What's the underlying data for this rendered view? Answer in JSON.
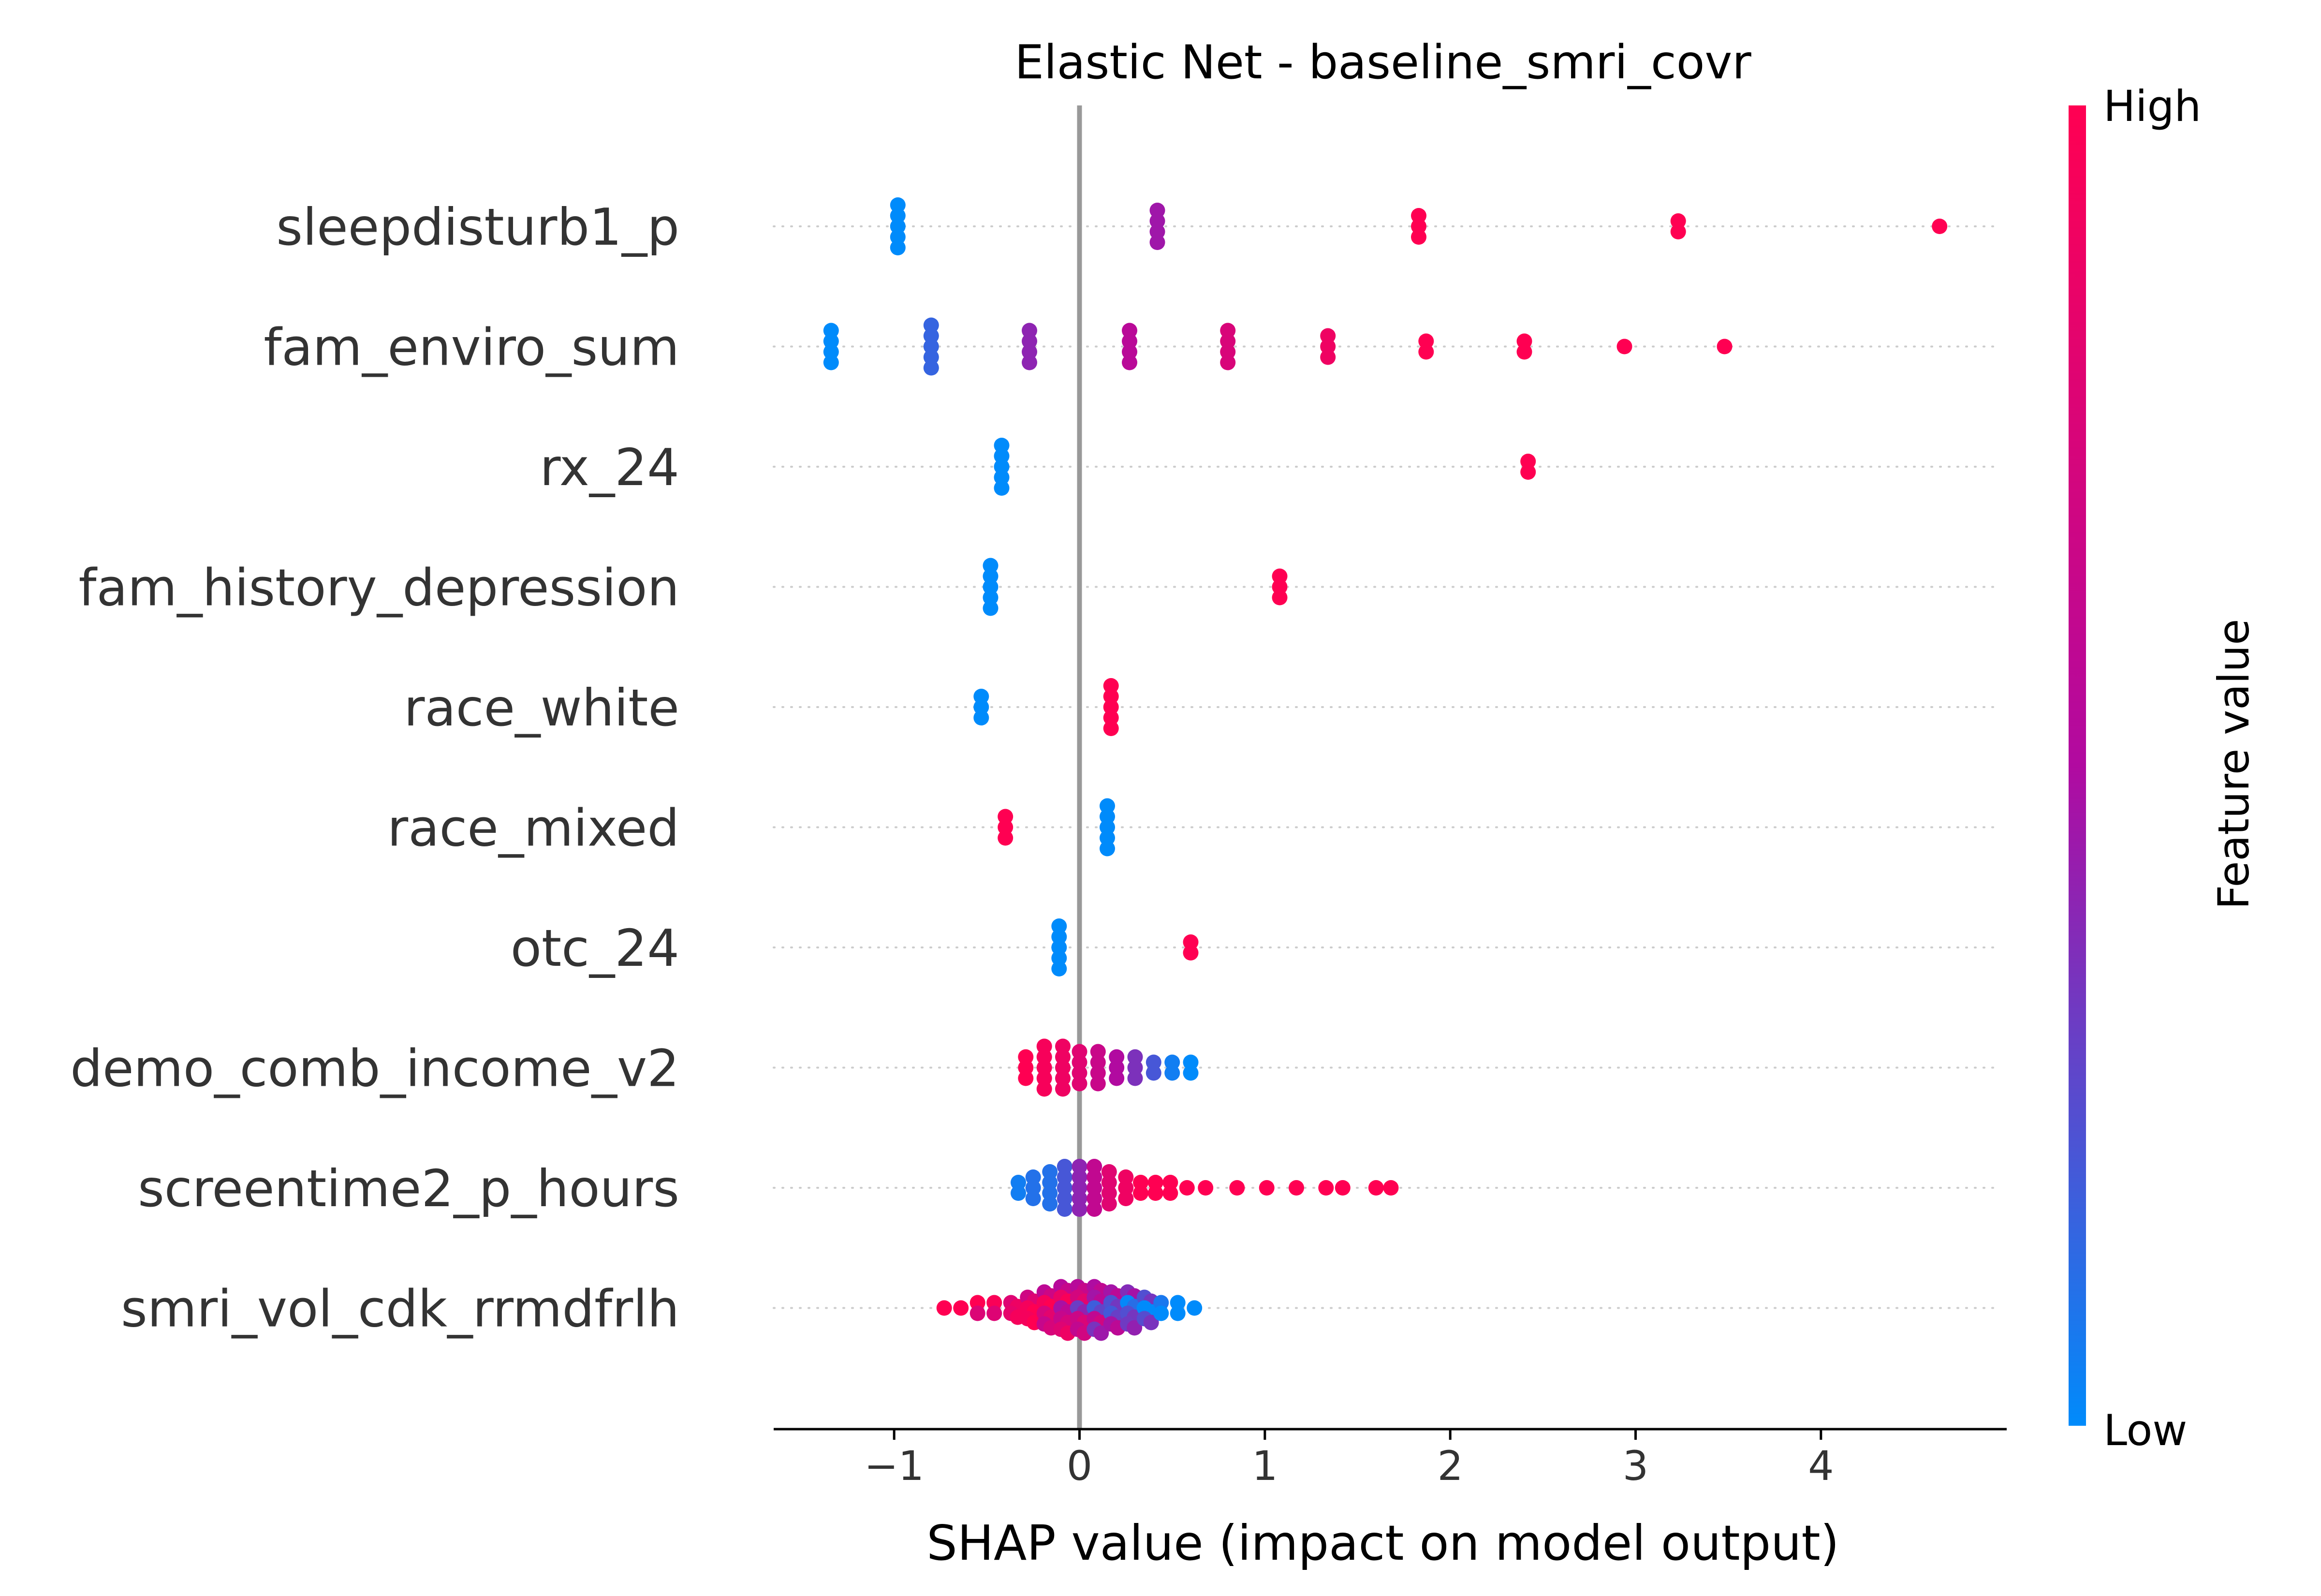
{
  "chart_data": {
    "type": "scatter",
    "subtype": "shap-beeswarm",
    "title": "Elastic Net - baseline_smri_covr",
    "xlabel": "SHAP value (impact on model output)",
    "xlim": [
      -1.65,
      4.95
    ],
    "xticks": [
      -1,
      0,
      1,
      2,
      3,
      4
    ],
    "xtick_labels": [
      "−1",
      "0",
      "1",
      "2",
      "3",
      "4"
    ],
    "colorbar": {
      "title": "Feature value",
      "high_label": "High",
      "low_label": "Low",
      "low_color": "#008bfb",
      "mid_color": "#b10aa0",
      "high_color": "#ff0052"
    },
    "features": [
      {
        "name": "sleepdisturb1_p",
        "clusters": [
          {
            "x": -0.98,
            "c": 0.0,
            "w": 80
          },
          {
            "x": 0.42,
            "c": 0.45,
            "w": 60
          },
          {
            "x": 1.83,
            "c": 1.0,
            "w": 35
          },
          {
            "x": 3.23,
            "c": 1.0,
            "w": 15
          },
          {
            "x": 4.64,
            "c": 1.0,
            "w": 5
          }
        ]
      },
      {
        "name": "fam_enviro_sum",
        "clusters": [
          {
            "x": -1.34,
            "c": 0.0,
            "w": 60
          },
          {
            "x": -0.8,
            "c": 0.15,
            "w": 80
          },
          {
            "x": -0.27,
            "c": 0.4,
            "w": 70
          },
          {
            "x": 0.27,
            "c": 0.55,
            "w": 70
          },
          {
            "x": 0.8,
            "c": 0.75,
            "w": 55
          },
          {
            "x": 1.34,
            "c": 0.9,
            "w": 40
          },
          {
            "x": 1.87,
            "c": 1.0,
            "w": 30
          },
          {
            "x": 2.4,
            "c": 1.0,
            "w": 20
          },
          {
            "x": 2.94,
            "c": 1.0,
            "w": 10
          },
          {
            "x": 3.48,
            "c": 1.0,
            "w": 5
          }
        ]
      },
      {
        "name": "rx_24",
        "clusters": [
          {
            "x": -0.42,
            "c": 0.0,
            "w": 80
          },
          {
            "x": 2.42,
            "c": 1.0,
            "w": 25
          }
        ]
      },
      {
        "name": "fam_history_depression",
        "clusters": [
          {
            "x": -0.48,
            "c": 0.0,
            "w": 80
          },
          {
            "x": 1.08,
            "c": 1.0,
            "w": 40
          }
        ]
      },
      {
        "name": "race_white",
        "clusters": [
          {
            "x": -0.53,
            "c": 0.0,
            "w": 35
          },
          {
            "x": 0.17,
            "c": 1.0,
            "w": 80
          }
        ]
      },
      {
        "name": "race_mixed",
        "clusters": [
          {
            "x": -0.4,
            "c": 1.0,
            "w": 40
          },
          {
            "x": 0.15,
            "c": 0.0,
            "w": 80
          }
        ]
      },
      {
        "name": "otc_24",
        "clusters": [
          {
            "x": -0.11,
            "c": 0.0,
            "w": 80
          },
          {
            "x": 0.6,
            "c": 1.0,
            "w": 25
          }
        ]
      },
      {
        "name": "demo_comb_income_v2",
        "clusters": [
          {
            "x": -0.29,
            "c": 1.0,
            "w": 50
          },
          {
            "x": -0.19,
            "c": 0.95,
            "w": 80
          },
          {
            "x": -0.09,
            "c": 0.9,
            "w": 95
          },
          {
            "x": 0.0,
            "c": 0.8,
            "w": 75
          },
          {
            "x": 0.1,
            "c": 0.65,
            "w": 55
          },
          {
            "x": 0.2,
            "c": 0.5,
            "w": 45
          },
          {
            "x": 0.3,
            "c": 0.35,
            "w": 35
          },
          {
            "x": 0.4,
            "c": 0.2,
            "w": 30
          },
          {
            "x": 0.5,
            "c": 0.05,
            "w": 25
          },
          {
            "x": 0.6,
            "c": 0.0,
            "w": 25
          }
        ]
      },
      {
        "name": "screentime2_p_hours",
        "clusters": [
          {
            "x": -0.33,
            "c": 0.05,
            "w": 25
          },
          {
            "x": -0.25,
            "c": 0.1,
            "w": 45
          },
          {
            "x": -0.16,
            "c": 0.1,
            "w": 75
          },
          {
            "x": -0.08,
            "c": 0.2,
            "w": 90
          },
          {
            "x": 0.0,
            "c": 0.4,
            "w": 95
          },
          {
            "x": 0.08,
            "c": 0.6,
            "w": 80
          },
          {
            "x": 0.16,
            "c": 0.8,
            "w": 55
          },
          {
            "x": 0.25,
            "c": 0.9,
            "w": 35
          },
          {
            "x": 0.33,
            "c": 1.0,
            "w": 25
          },
          {
            "x": 0.41,
            "c": 1.0,
            "w": 18
          },
          {
            "x": 0.49,
            "c": 1.0,
            "w": 12
          },
          {
            "x": 0.58,
            "c": 1.0,
            "w": 10
          },
          {
            "x": 0.68,
            "c": 1.0,
            "w": 8
          },
          {
            "x": 0.85,
            "c": 1.0,
            "w": 8
          },
          {
            "x": 1.01,
            "c": 1.0,
            "w": 5
          },
          {
            "x": 1.17,
            "c": 1.0,
            "w": 3
          },
          {
            "x": 1.33,
            "c": 1.0,
            "w": 5
          },
          {
            "x": 1.42,
            "c": 1.0,
            "w": 3
          },
          {
            "x": 1.6,
            "c": 1.0,
            "w": 3
          },
          {
            "x": 1.68,
            "c": 1.0,
            "w": 3
          }
        ]
      },
      {
        "name": "smri_vol_cdk_rrmdfrlh",
        "beeswarm": true,
        "clusters": [
          {
            "x": -0.73,
            "c": 1.0,
            "w": 3
          },
          {
            "x": -0.64,
            "c": 1.0,
            "w": 6
          },
          {
            "x": -0.55,
            "c": 0.98,
            "w": 12
          },
          {
            "x": -0.46,
            "c": 0.95,
            "w": 20
          },
          {
            "x": -0.37,
            "c": 0.9,
            "w": 32
          },
          {
            "x": -0.28,
            "c": 0.85,
            "w": 48
          },
          {
            "x": -0.19,
            "c": 0.75,
            "w": 65
          },
          {
            "x": -0.1,
            "c": 0.65,
            "w": 80
          },
          {
            "x": -0.01,
            "c": 0.55,
            "w": 88
          },
          {
            "x": 0.08,
            "c": 0.4,
            "w": 85
          },
          {
            "x": 0.17,
            "c": 0.3,
            "w": 72
          },
          {
            "x": 0.26,
            "c": 0.2,
            "w": 55
          },
          {
            "x": 0.35,
            "c": 0.12,
            "w": 38
          },
          {
            "x": 0.44,
            "c": 0.06,
            "w": 22
          },
          {
            "x": 0.53,
            "c": 0.03,
            "w": 12
          },
          {
            "x": 0.62,
            "c": 0.0,
            "w": 6
          }
        ]
      }
    ]
  }
}
